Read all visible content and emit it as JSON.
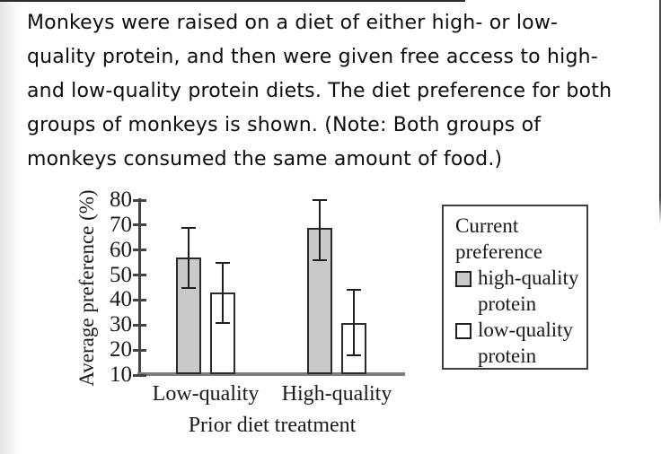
{
  "page": {
    "question_lines": [
      "Monkeys were raised on a diet of either high- or low-",
      "quality protein, and then were given free access to high-",
      "and low-quality protein diets. The diet preference for both",
      "groups of monkeys is shown. (Note: Both groups of",
      "monkeys consumed the same amount of food.)"
    ]
  },
  "chart_data": {
    "type": "bar",
    "title": "",
    "xlabel": "Prior diet treatment",
    "ylabel": "Average preference (%)",
    "ylim": [
      10,
      80
    ],
    "yticks": [
      10,
      20,
      30,
      40,
      50,
      60,
      70,
      80
    ],
    "categories": [
      "Low-quality",
      "High-quality"
    ],
    "series": [
      {
        "name": "high-quality protein",
        "fill": "#c9c9c9",
        "values": [
          57,
          69
        ],
        "error_low": [
          45,
          56
        ],
        "error_high": [
          69,
          80
        ]
      },
      {
        "name": "low-quality protein",
        "fill": "#ffffff",
        "values": [
          43,
          31
        ],
        "error_low": [
          31,
          18
        ],
        "error_high": [
          55,
          44
        ]
      }
    ],
    "legend": {
      "title": "Current preference",
      "position": "right",
      "entries": [
        {
          "label": "high-quality protein",
          "fill": "#c9c9c9"
        },
        {
          "label": "low-quality protein",
          "fill": "#ffffff"
        }
      ]
    },
    "grid": false,
    "bar_edge_color": "#2b2b2b",
    "axis_color": "#454545"
  }
}
